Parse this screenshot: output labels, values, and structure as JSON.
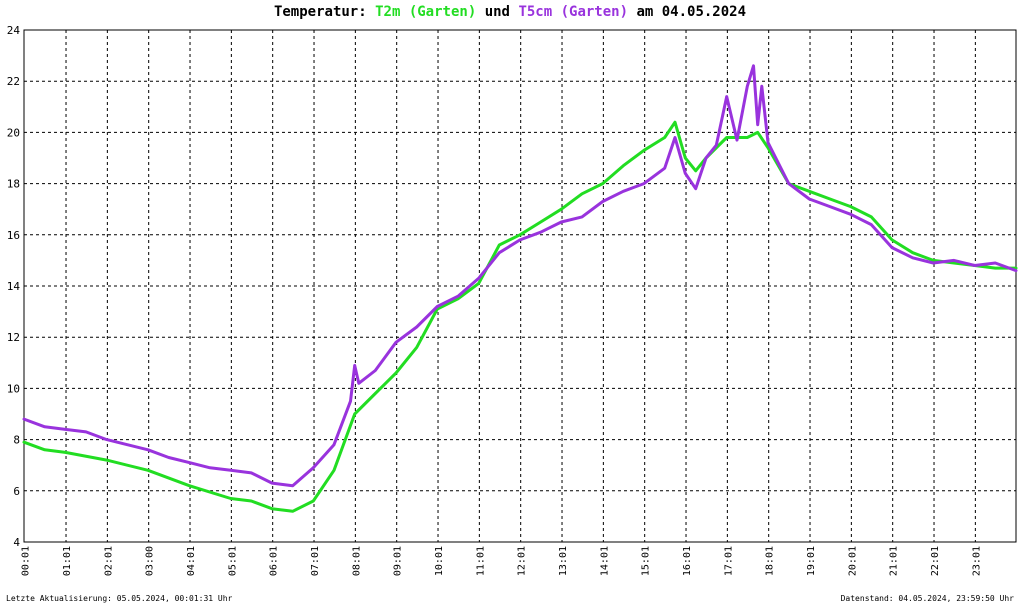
{
  "title": {
    "prefix": "Temperatur:",
    "series1": "T2m (Garten)",
    "join": "und",
    "series2": "T5cm (Garten)",
    "suffix": "am 04.05.2024"
  },
  "footer": {
    "left": "Letzte Aktualisierung: 05.05.2024, 00:01:31 Uhr",
    "right": "Datenstand: 04.05.2024, 23:59:50 Uhr"
  },
  "colors": {
    "t2m": "#22dd22",
    "t5cm": "#9933dd",
    "grid": "#000000"
  },
  "chart_data": {
    "type": "line",
    "x_unit": "hours",
    "xlim": [
      0,
      24
    ],
    "ylim": [
      4,
      24
    ],
    "yticks": [
      4,
      6,
      8,
      10,
      12,
      14,
      16,
      18,
      20,
      22,
      24
    ],
    "xtick_labels": [
      "00:01",
      "01:01",
      "02:01",
      "03:00",
      "04:01",
      "05:01",
      "06:01",
      "07:01",
      "08:01",
      "09:01",
      "10:01",
      "11:01",
      "12:01",
      "13:01",
      "14:01",
      "15:01",
      "16:01",
      "17:01",
      "18:01",
      "19:01",
      "20:01",
      "21:01",
      "22:01",
      "23:01"
    ],
    "grid": true,
    "series": [
      {
        "name": "T2m (Garten)",
        "color": "#22dd22",
        "points": [
          [
            0,
            7.9
          ],
          [
            0.5,
            7.6
          ],
          [
            1,
            7.5
          ],
          [
            2,
            7.2
          ],
          [
            3,
            6.8
          ],
          [
            4,
            6.2
          ],
          [
            5,
            5.7
          ],
          [
            5.5,
            5.6
          ],
          [
            6,
            5.3
          ],
          [
            6.5,
            5.2
          ],
          [
            7,
            5.6
          ],
          [
            7.5,
            6.8
          ],
          [
            8,
            9.0
          ],
          [
            8.5,
            9.8
          ],
          [
            9,
            10.6
          ],
          [
            9.5,
            11.6
          ],
          [
            10,
            13.1
          ],
          [
            10.5,
            13.5
          ],
          [
            11,
            14.1
          ],
          [
            11.5,
            15.6
          ],
          [
            12,
            16.0
          ],
          [
            12.5,
            16.5
          ],
          [
            13,
            17.0
          ],
          [
            13.5,
            17.6
          ],
          [
            14,
            18.0
          ],
          [
            14.5,
            18.7
          ],
          [
            15,
            19.3
          ],
          [
            15.5,
            19.8
          ],
          [
            15.75,
            20.4
          ],
          [
            16,
            19.0
          ],
          [
            16.25,
            18.5
          ],
          [
            16.5,
            19.0
          ],
          [
            17,
            19.8
          ],
          [
            17.5,
            19.8
          ],
          [
            17.75,
            20.0
          ],
          [
            18,
            19.4
          ],
          [
            18.5,
            18.0
          ],
          [
            19,
            17.7
          ],
          [
            19.5,
            17.4
          ],
          [
            20,
            17.1
          ],
          [
            20.5,
            16.7
          ],
          [
            21,
            15.8
          ],
          [
            21.5,
            15.3
          ],
          [
            22,
            15.0
          ],
          [
            22.5,
            14.9
          ],
          [
            23,
            14.8
          ],
          [
            23.5,
            14.7
          ],
          [
            24,
            14.7
          ]
        ]
      },
      {
        "name": "T5cm (Garten)",
        "color": "#9933dd",
        "points": [
          [
            0,
            8.8
          ],
          [
            0.5,
            8.5
          ],
          [
            1,
            8.4
          ],
          [
            1.5,
            8.3
          ],
          [
            2,
            8.0
          ],
          [
            2.5,
            7.8
          ],
          [
            3,
            7.6
          ],
          [
            3.5,
            7.3
          ],
          [
            4,
            7.1
          ],
          [
            4.5,
            6.9
          ],
          [
            5,
            6.8
          ],
          [
            5.5,
            6.7
          ],
          [
            6,
            6.3
          ],
          [
            6.5,
            6.2
          ],
          [
            7,
            6.9
          ],
          [
            7.5,
            7.8
          ],
          [
            7.9,
            9.5
          ],
          [
            8,
            10.9
          ],
          [
            8.1,
            10.2
          ],
          [
            8.5,
            10.7
          ],
          [
            9,
            11.8
          ],
          [
            9.5,
            12.4
          ],
          [
            10,
            13.2
          ],
          [
            10.5,
            13.6
          ],
          [
            11,
            14.3
          ],
          [
            11.5,
            15.3
          ],
          [
            12,
            15.8
          ],
          [
            12.5,
            16.1
          ],
          [
            13,
            16.5
          ],
          [
            13.5,
            16.7
          ],
          [
            14,
            17.3
          ],
          [
            14.5,
            17.7
          ],
          [
            15,
            18.0
          ],
          [
            15.5,
            18.6
          ],
          [
            15.75,
            19.8
          ],
          [
            16,
            18.4
          ],
          [
            16.25,
            17.8
          ],
          [
            16.5,
            19.0
          ],
          [
            16.75,
            19.5
          ],
          [
            17,
            21.4
          ],
          [
            17.25,
            19.7
          ],
          [
            17.5,
            21.8
          ],
          [
            17.65,
            22.6
          ],
          [
            17.75,
            20.3
          ],
          [
            17.85,
            21.8
          ],
          [
            18,
            19.6
          ],
          [
            18.5,
            18.0
          ],
          [
            19,
            17.4
          ],
          [
            19.5,
            17.1
          ],
          [
            20,
            16.8
          ],
          [
            20.5,
            16.4
          ],
          [
            21,
            15.5
          ],
          [
            21.5,
            15.1
          ],
          [
            22,
            14.9
          ],
          [
            22.5,
            15.0
          ],
          [
            23,
            14.8
          ],
          [
            23.5,
            14.9
          ],
          [
            24,
            14.6
          ]
        ]
      }
    ]
  }
}
